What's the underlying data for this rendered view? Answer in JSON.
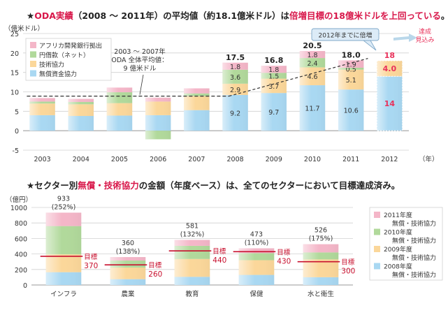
{
  "chart_data": [
    {
      "type": "bar",
      "stacked": true,
      "title_parts": [
        {
          "text": "★",
          "color": "#222222"
        },
        {
          "text": "ODA実績",
          "color": "#d8174a"
        },
        {
          "text": "（2008 ～ 2011年）の平均値（約18.1億米ドル）は",
          "color": "#222222"
        },
        {
          "text": "倍増目標の18億米ドルを上回っている",
          "color": "#d8174a"
        },
        {
          "text": "。",
          "color": "#222222"
        }
      ],
      "ylabel": "（億米ドル）",
      "xlabel": "（年）",
      "ylim": [
        -5,
        25
      ],
      "yticks": [
        -5,
        0,
        5,
        10,
        15,
        20,
        25
      ],
      "categories": [
        "2003",
        "2004",
        "2005",
        "2006",
        "2007",
        "2008",
        "2009",
        "2010",
        "2011",
        "2012"
      ],
      "series": [
        {
          "name": "無償資金協力",
          "color": "#a9d8f2",
          "values": [
            4.0,
            3.8,
            3.9,
            4.0,
            5.3,
            9.2,
            9.7,
            11.7,
            10.6,
            14
          ],
          "labels": [
            null,
            null,
            null,
            null,
            null,
            "9.2",
            "9.7",
            "11.7",
            "10.6",
            "14"
          ]
        },
        {
          "name": "技術協力",
          "color": "#fbd79a",
          "values": [
            3.0,
            3.0,
            3.2,
            3.5,
            3.6,
            2.9,
            3.7,
            4.6,
            5.1,
            4.0
          ],
          "labels": [
            null,
            null,
            null,
            null,
            null,
            "2.9",
            "3.7",
            "4.6",
            "5.1",
            "4.0"
          ]
        },
        {
          "name": "円借款（ネット）",
          "color": "#b1d99b",
          "values": [
            0.5,
            0.6,
            2.8,
            -2.2,
            0.7,
            3.6,
            1.5,
            2.4,
            0.5,
            0
          ],
          "labels": [
            null,
            null,
            null,
            null,
            null,
            "3.6",
            "1.5",
            "2.4",
            "0.5",
            null
          ]
        },
        {
          "name": "アフリカ開発銀行拠出",
          "color": "#f4b6c8",
          "values": [
            0.9,
            0.8,
            1.2,
            1.0,
            1.3,
            1.8,
            1.8,
            1.8,
            1.9,
            0
          ],
          "labels": [
            null,
            null,
            null,
            null,
            null,
            "1.8",
            "1.8",
            "1.8",
            "1.9",
            null
          ]
        }
      ],
      "totals": [
        null,
        null,
        null,
        null,
        null,
        "17.5",
        "16.8",
        "20.5",
        "18.0",
        "18"
      ],
      "forecast_index": 9,
      "average_line": {
        "from": "2003",
        "to": "2007",
        "value": 8.9,
        "annotation_lines": [
          "2003 ～ 2007年",
          "ODA 全体平均値：",
          "9 億米ドル"
        ]
      },
      "trend_line": {
        "from_value": 8.9,
        "to_value": 18.6
      },
      "callout": "2012年までに倍増",
      "side_label_lines": [
        "達成",
        "見込み"
      ]
    },
    {
      "type": "bar",
      "stacked": true,
      "title_parts": [
        {
          "text": "★セクター別",
          "color": "#222222"
        },
        {
          "text": "無償・技術協力",
          "color": "#d8174a"
        },
        {
          "text": "の金額（年度ベース）は、全てのセクターにおいて目標達成済み。",
          "color": "#222222"
        }
      ],
      "ylabel": "（億円）",
      "ylim": [
        0,
        1000
      ],
      "yticks": [
        0,
        200,
        400,
        600,
        800,
        1000
      ],
      "categories": [
        "インフラ",
        "農業",
        "教育",
        "保健",
        "水と衛生"
      ],
      "series": [
        {
          "name": "2008年度 無償・技術協力",
          "legend_lines": [
            "2008年度",
            "無償・技術協力"
          ],
          "color": "#a9d8f2",
          "values": [
            165,
            75,
            105,
            130,
            100
          ]
        },
        {
          "name": "2009年度 無償・技術協力",
          "legend_lines": [
            "2009年度",
            "無償・技術協力"
          ],
          "color": "#fbd79a",
          "values": [
            230,
            150,
            230,
            190,
            230
          ]
        },
        {
          "name": "2010年度 無償・技術協力",
          "legend_lines": [
            "2010年度",
            "無償・技術協力"
          ],
          "color": "#b1d99b",
          "values": [
            365,
            90,
            170,
            90,
            90
          ]
        },
        {
          "name": "2011年度 無償・技術協力",
          "legend_lines": [
            "2011年度",
            "無償・技術協力"
          ],
          "color": "#f4b6c8",
          "values": [
            173,
            45,
            76,
            63,
            106
          ]
        }
      ],
      "totals": [
        "933",
        "360",
        "581",
        "473",
        "526"
      ],
      "percentages": [
        "(252%)",
        "(138%)",
        "(132%)",
        "(110%)",
        "(175%)"
      ],
      "targets": [
        370,
        260,
        440,
        430,
        300
      ],
      "target_label": "目標"
    }
  ]
}
